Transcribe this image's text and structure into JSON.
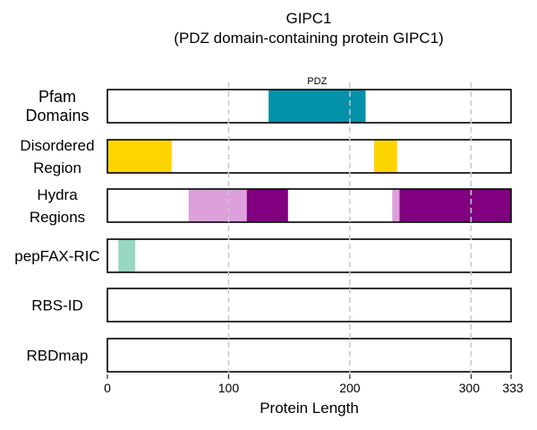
{
  "title": "GIPC1",
  "subtitle": "(PDZ domain-containing protein GIPC1)",
  "chart_data": {
    "type": "protein-feature-tracks",
    "protein_length": 333,
    "xlabel": "Protein Length",
    "x_ticks": [
      0,
      100,
      200,
      300,
      333
    ],
    "gridlines_at": [
      100,
      200,
      300
    ],
    "grid": "dashed vertical",
    "tracks": [
      {
        "name": "Pfam Domains",
        "label_lines": [
          "Pfam",
          "Domains"
        ],
        "features": [
          {
            "label": "PDZ",
            "start": 133,
            "end": 213,
            "color": "#0492a8"
          }
        ]
      },
      {
        "name": "Disordered Region",
        "label_lines": [
          "Disordered",
          "Region"
        ],
        "features": [
          {
            "start": 0,
            "end": 53,
            "color": "#ffd500"
          },
          {
            "start": 220,
            "end": 239,
            "color": "#ffd500"
          }
        ]
      },
      {
        "name": "Hydra Regions",
        "label_lines": [
          "Hydra",
          "Regions"
        ],
        "features": [
          {
            "start": 67,
            "end": 115,
            "color": "#dda0dd"
          },
          {
            "start": 115,
            "end": 149,
            "color": "#800080"
          },
          {
            "start": 235,
            "end": 241,
            "color": "#dda0dd"
          },
          {
            "start": 241,
            "end": 333,
            "color": "#800080"
          }
        ]
      },
      {
        "name": "pepFAX-RIC",
        "label_lines": [
          "pepFAX-RIC"
        ],
        "features": [
          {
            "start": 9,
            "end": 23,
            "color": "#98d8c0"
          }
        ]
      },
      {
        "name": "RBS-ID",
        "label_lines": [
          "RBS-ID"
        ],
        "features": []
      },
      {
        "name": "RBDmap",
        "label_lines": [
          "RBDmap"
        ],
        "features": []
      }
    ]
  }
}
